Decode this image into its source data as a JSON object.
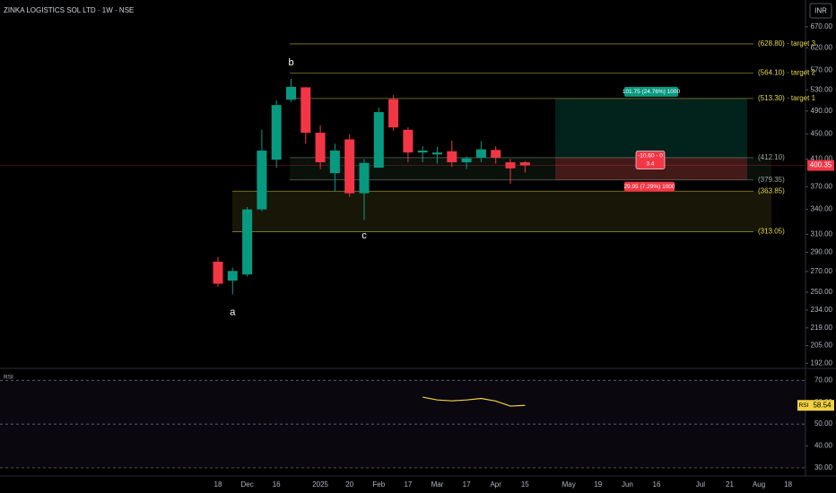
{
  "header": {
    "title": "ZINKA LOGISTICS SOL LTD · 1W · NSE",
    "currency": "INR"
  },
  "chart_data": [
    {
      "type": "candlestick",
      "log": true,
      "grid": false,
      "up_color": "#089981",
      "down_color": "#f23645",
      "categories": [
        "18",
        null,
        "Dec",
        null,
        "16",
        null,
        null,
        "2025",
        null,
        "20",
        null,
        "Feb",
        null,
        "17",
        null,
        "Mar",
        null,
        "17",
        null,
        "Apr",
        null,
        "15",
        null,
        null,
        "May",
        null,
        "19",
        null,
        "Jun",
        null,
        "16",
        null,
        null,
        "Jul",
        null,
        "21",
        null,
        "Aug",
        null,
        "18"
      ],
      "open": [
        280,
        261,
        267,
        340,
        409,
        511,
        535,
        452,
        389,
        441,
        361,
        397,
        512,
        457,
        420,
        417,
        422,
        405,
        412,
        424,
        405,
        405,
        null,
        null,
        null,
        null,
        null,
        null,
        null,
        null,
        null,
        null,
        null,
        null,
        null,
        null,
        null,
        null,
        null,
        null
      ],
      "high": [
        285,
        274,
        343,
        457,
        510,
        552,
        536,
        465,
        434,
        449,
        410,
        496,
        520,
        461,
        430,
        429,
        439,
        414,
        438,
        430,
        410,
        407,
        null,
        null,
        null,
        null,
        null,
        null,
        null,
        null,
        null,
        null,
        null,
        null,
        null,
        null,
        null,
        null,
        null,
        null
      ],
      "low": [
        255,
        248,
        265,
        338,
        397,
        507,
        434,
        395,
        363,
        356,
        327,
        397,
        455,
        405,
        405,
        403,
        398,
        395,
        405,
        403,
        374,
        390,
        null,
        null,
        null,
        null,
        null,
        null,
        null,
        null,
        null,
        null,
        null,
        null,
        null,
        null,
        null,
        null,
        null,
        null
      ],
      "close": [
        258,
        270.5,
        340,
        423,
        501,
        536,
        452,
        405,
        423,
        361,
        404,
        488,
        461,
        420,
        423,
        420,
        405,
        411,
        425,
        412,
        396,
        400.35,
        null,
        null,
        null,
        null,
        null,
        null,
        null,
        null,
        null,
        null,
        null,
        null,
        null,
        null,
        null,
        null,
        null,
        null
      ],
      "ylim": [
        189,
        740
      ],
      "yticks": [
        {
          "value": 670,
          "label": "670.00"
        },
        {
          "value": 620,
          "label": "620.00"
        },
        {
          "value": 570,
          "label": "570.00"
        },
        {
          "value": 530,
          "label": "530.00"
        },
        {
          "value": 490,
          "label": "490.00"
        },
        {
          "value": 450,
          "label": "450.00"
        },
        {
          "value": 410,
          "label": "410.00"
        },
        {
          "value": 370,
          "label": "370.00"
        },
        {
          "value": 340,
          "label": "340.00"
        },
        {
          "value": 310,
          "label": "310.00"
        },
        {
          "value": 290,
          "label": "290.00"
        },
        {
          "value": 270,
          "label": "270.00"
        },
        {
          "value": 250,
          "label": "250.00"
        },
        {
          "value": 234,
          "label": "234.00"
        },
        {
          "value": 219,
          "label": "219.00"
        },
        {
          "value": 205,
          "label": "205.00"
        },
        {
          "value": 192,
          "label": "192.00"
        }
      ],
      "levels": [
        {
          "value": 628.8,
          "label": "(628.80) · target 3",
          "color": "#e6d84a"
        },
        {
          "value": 564.1,
          "label": "(564.10) · target 2",
          "color": "#e6d84a"
        },
        {
          "value": 513.3,
          "label": "(513.30) · target 1",
          "color": "#e6d84a"
        },
        {
          "value": 412.1,
          "label": "(412.10)",
          "color": "#9aa79a"
        },
        {
          "value": 379.35,
          "label": "(379.35)",
          "color": "#9aa79a"
        },
        {
          "value": 363.85,
          "label": "(363.85)",
          "color": "#e6d84a"
        },
        {
          "value": 313.05,
          "label": "(313.05)",
          "color": "#e6d84a"
        }
      ],
      "pivots": [
        "a",
        "b",
        "c"
      ],
      "position_labels": {
        "target": "101.75 (24.76%) 1000",
        "status": [
          "-10.60 - 0",
          "3.4"
        ],
        "stop": "29.95 (7.29%) 1000"
      }
    },
    {
      "type": "line",
      "name": "RSI",
      "color": "#f0d040",
      "values": [
        null,
        null,
        null,
        null,
        null,
        null,
        null,
        null,
        null,
        null,
        null,
        null,
        null,
        null,
        62.3,
        61,
        60.6,
        61,
        61.7,
        60.5,
        58.2,
        58.54,
        null,
        null,
        null,
        null,
        null,
        null,
        null,
        null,
        null,
        null,
        null,
        null,
        null,
        null,
        null,
        null,
        null,
        null
      ],
      "ylim": [
        26.3,
        75
      ],
      "yticks": [
        {
          "value": 70,
          "label": "70.00"
        },
        {
          "value": 60,
          "label": "60.00"
        },
        {
          "value": 50,
          "label": "50.00"
        },
        {
          "value": 40,
          "label": "40.00"
        },
        {
          "value": 30,
          "label": "30.00"
        }
      ]
    }
  ]
}
